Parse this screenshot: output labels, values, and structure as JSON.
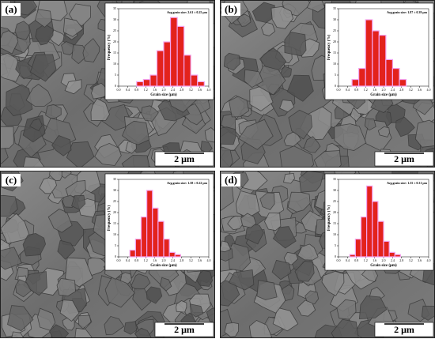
{
  "chart_data": [
    {
      "type": "histogram",
      "panel_label": "(a)",
      "annotation": "Avg.grain size: 2.61 ± 0.25 μm",
      "x_label": "Grain size (μm)",
      "y_label": "Frequency (%)",
      "scale_bar": "2 μm",
      "bins": [
        0.8,
        1.1,
        1.4,
        1.7,
        2.0,
        2.3,
        2.6,
        2.9,
        3.2,
        3.5,
        3.8
      ],
      "values": [
        2,
        3,
        5,
        16,
        20,
        31,
        27,
        14,
        5,
        2
      ],
      "color": "#e3221c",
      "xlim": [
        0,
        4
      ],
      "ylim": [
        0,
        35
      ],
      "xticks": [
        {
          "value": 0,
          "label": "0.0"
        },
        {
          "value": 0.4,
          "label": "0.4"
        },
        {
          "value": 0.8,
          "label": "0.8"
        },
        {
          "value": 1.2,
          "label": "1.2"
        },
        {
          "value": 1.6,
          "label": "1.6"
        },
        {
          "value": 2,
          "label": "2.0"
        },
        {
          "value": 2.4,
          "label": "2.4"
        },
        {
          "value": 2.8,
          "label": "2.8"
        },
        {
          "value": 3.2,
          "label": "3.2"
        },
        {
          "value": 3.6,
          "label": "3.6"
        },
        {
          "value": 4,
          "label": "4.0"
        }
      ],
      "yticks": [
        0,
        5,
        10,
        15,
        20,
        25,
        30,
        35
      ]
    },
    {
      "type": "histogram",
      "panel_label": "(b)",
      "annotation": "Avg.grain size: 1.87 ± 0.39 μm",
      "x_label": "Grain size (μm)",
      "y_label": "Frequency (%)",
      "scale_bar": "2 μm",
      "bins": [
        0.6,
        0.9,
        1.2,
        1.5,
        1.8,
        2.1,
        2.4,
        2.7,
        3.0
      ],
      "values": [
        3,
        8,
        30,
        25,
        23,
        12,
        8,
        3
      ],
      "color": "#e3221c",
      "xlim": [
        0,
        4
      ],
      "ylim": [
        0,
        35
      ],
      "xticks": [
        {
          "value": 0,
          "label": "0.0"
        },
        {
          "value": 0.4,
          "label": "0.4"
        },
        {
          "value": 0.8,
          "label": "0.8"
        },
        {
          "value": 1.2,
          "label": "1.2"
        },
        {
          "value": 1.6,
          "label": "1.6"
        },
        {
          "value": 2,
          "label": "2.0"
        },
        {
          "value": 2.4,
          "label": "2.4"
        },
        {
          "value": 2.8,
          "label": "2.8"
        },
        {
          "value": 3.2,
          "label": "3.2"
        },
        {
          "value": 3.6,
          "label": "3.6"
        },
        {
          "value": 4,
          "label": "4.0"
        }
      ],
      "yticks": [
        0,
        5,
        10,
        15,
        20,
        25,
        30,
        35
      ]
    },
    {
      "type": "histogram",
      "panel_label": "(c)",
      "annotation": "Avg.grain size: 1.58 ± 0.22 μm",
      "x_label": "Grain size (μm)",
      "y_label": "Frequency (%)",
      "scale_bar": "2 μm",
      "bins": [
        0.5,
        0.75,
        1.0,
        1.25,
        1.5,
        1.75,
        2.0,
        2.25,
        2.5,
        2.75
      ],
      "values": [
        3,
        8,
        18,
        30,
        22,
        16,
        8,
        2,
        1
      ],
      "color": "#e3221c",
      "xlim": [
        0,
        4
      ],
      "ylim": [
        0,
        35
      ],
      "xticks": [
        {
          "value": 0,
          "label": "0.0"
        },
        {
          "value": 0.4,
          "label": "0.4"
        },
        {
          "value": 0.8,
          "label": "0.8"
        },
        {
          "value": 1.2,
          "label": "1.2"
        },
        {
          "value": 1.6,
          "label": "1.6"
        },
        {
          "value": 2,
          "label": "2.0"
        },
        {
          "value": 2.4,
          "label": "2.4"
        },
        {
          "value": 2.8,
          "label": "2.8"
        },
        {
          "value": 3.2,
          "label": "3.2"
        },
        {
          "value": 3.6,
          "label": "3.6"
        },
        {
          "value": 4,
          "label": "4.0"
        }
      ],
      "yticks": [
        0,
        5,
        10,
        15,
        20,
        25,
        30,
        35
      ]
    },
    {
      "type": "histogram",
      "panel_label": "(d)",
      "annotation": "Avg.grain size: 1.55 ± 0.31 μm",
      "x_label": "Grain size (μm)",
      "y_label": "Frequency (%)",
      "scale_bar": "2 μm",
      "bins": [
        0.5,
        0.75,
        1.0,
        1.25,
        1.5,
        1.75,
        2.0,
        2.25,
        2.5,
        2.75
      ],
      "values": [
        1,
        8,
        18,
        32,
        25,
        16,
        7,
        2,
        1
      ],
      "color": "#e3221c",
      "xlim": [
        0,
        4
      ],
      "ylim": [
        0,
        35
      ],
      "xticks": [
        {
          "value": 0,
          "label": "0.0"
        },
        {
          "value": 0.4,
          "label": "0.4"
        },
        {
          "value": 0.8,
          "label": "0.8"
        },
        {
          "value": 1.2,
          "label": "1.2"
        },
        {
          "value": 1.6,
          "label": "1.6"
        },
        {
          "value": 2,
          "label": "2.0"
        },
        {
          "value": 2.4,
          "label": "2.4"
        },
        {
          "value": 2.8,
          "label": "2.8"
        },
        {
          "value": 3.2,
          "label": "3.2"
        },
        {
          "value": 3.6,
          "label": "3.6"
        },
        {
          "value": 4,
          "label": "4.0"
        }
      ],
      "yticks": [
        0,
        5,
        10,
        15,
        20,
        25,
        30,
        35
      ]
    }
  ]
}
